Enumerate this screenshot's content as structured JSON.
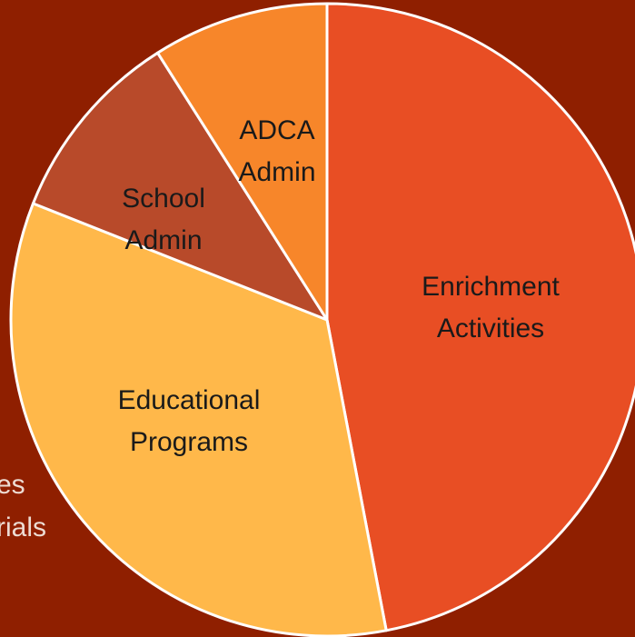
{
  "chart_data": {
    "type": "pie",
    "categories": [
      "Enrichment Activities",
      "Educational Programs",
      "School Admin",
      "ADCA Admin"
    ],
    "values": [
      47,
      34,
      10,
      9
    ],
    "colors": [
      "#e84e24",
      "#ffb84a",
      "#b84a2a",
      "#f7862a"
    ],
    "annotations": [
      "es",
      "rials"
    ]
  }
}
